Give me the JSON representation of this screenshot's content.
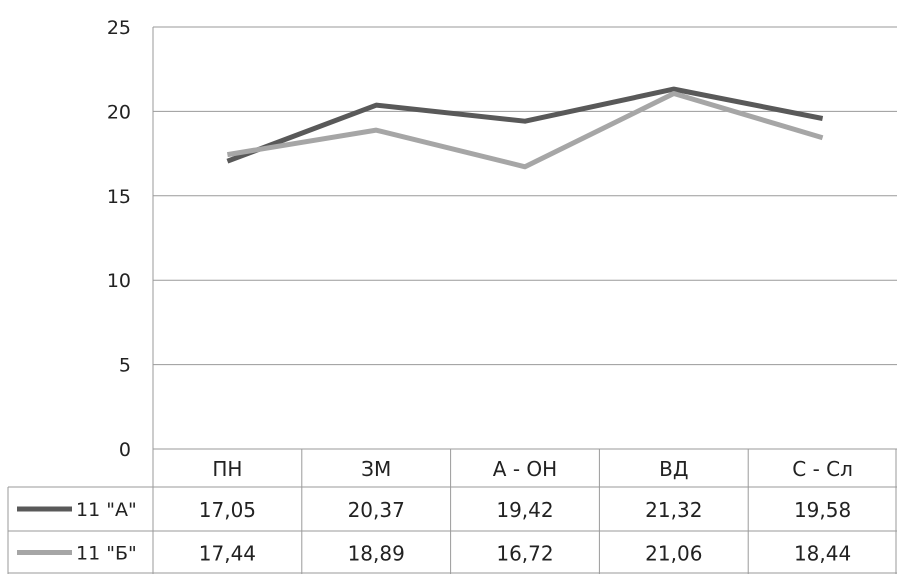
{
  "chart_data": {
    "type": "line",
    "categories": [
      "ПН",
      "ЗМ",
      "А - ОН",
      "ВД",
      "С - Сл"
    ],
    "series": [
      {
        "name": "11 \"А\"",
        "values": [
          17.05,
          20.37,
          19.42,
          21.32,
          19.58
        ],
        "labels": [
          "17,05",
          "20,37",
          "19,42",
          "21,32",
          "19,58"
        ],
        "color": "#595959"
      },
      {
        "name": "11 \"Б\"",
        "values": [
          17.44,
          18.89,
          16.72,
          21.06,
          18.44
        ],
        "labels": [
          "17,44",
          "18,89",
          "16,72",
          "21,06",
          "18,44"
        ],
        "color": "#a6a6a6"
      }
    ],
    "yticks": [
      "0",
      "5",
      "10",
      "15",
      "20",
      "25"
    ],
    "ylim": [
      0,
      25
    ],
    "grid": true,
    "legend": "data-table",
    "title": "",
    "xlabel": "",
    "ylabel": ""
  }
}
